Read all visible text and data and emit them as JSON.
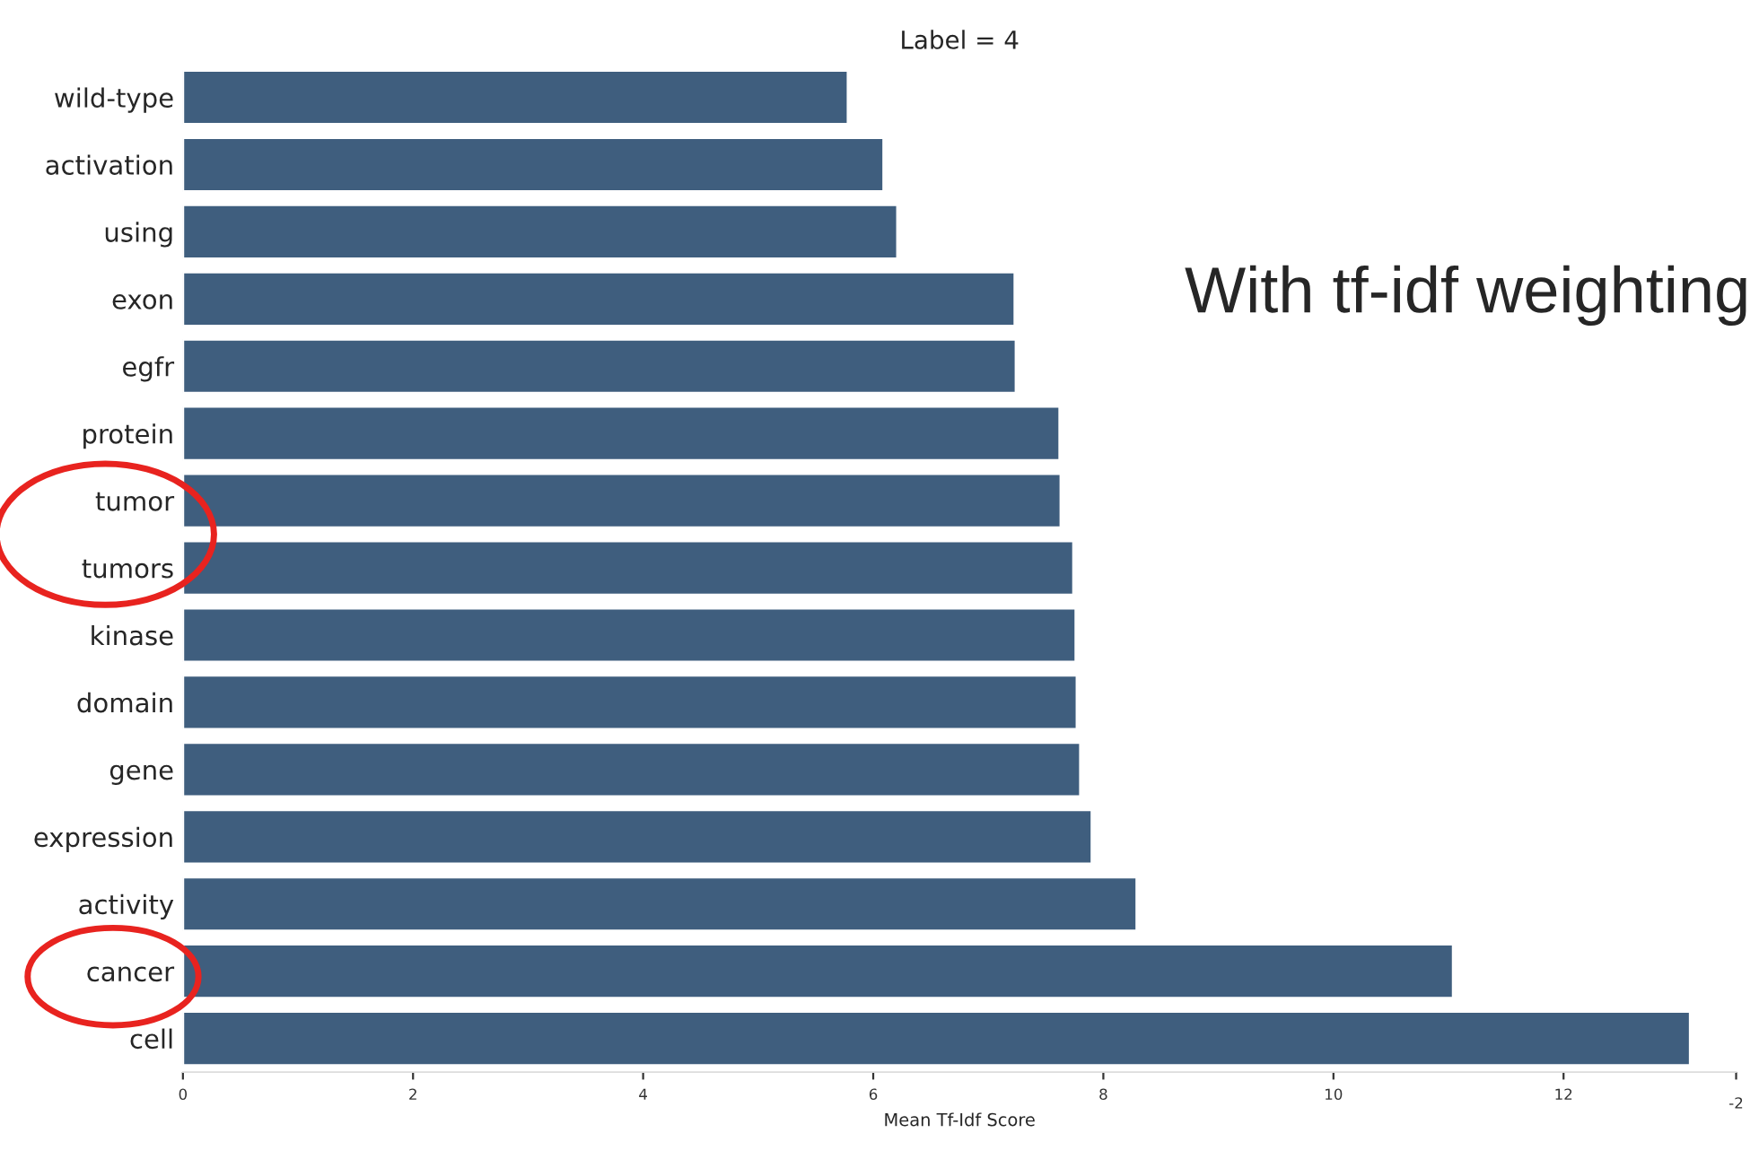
{
  "chart_data": {
    "type": "bar",
    "orientation": "horizontal",
    "title": "Label = 4",
    "xlabel": "Mean Tf-Idf Score",
    "categories": [
      "wild-type",
      "activation",
      "using",
      "exon",
      "egfr",
      "protein",
      "tumor",
      "tumors",
      "kinase",
      "domain",
      "gene",
      "expression",
      "activity",
      "cancer",
      "cell"
    ],
    "values": [
      5.78,
      6.09,
      6.21,
      7.23,
      7.24,
      7.62,
      7.63,
      7.74,
      7.76,
      7.77,
      7.8,
      7.9,
      8.29,
      11.04,
      13.1
    ],
    "color": "#3f5e7e",
    "xlim": [
      0,
      13.5
    ],
    "xticks": [
      0,
      2,
      4,
      6,
      8,
      10,
      12,
      {
        "value": 13.5,
        "label": null
      }
    ],
    "grid": false,
    "annotations": [
      "With tf-idf weighting",
      "-2"
    ]
  }
}
